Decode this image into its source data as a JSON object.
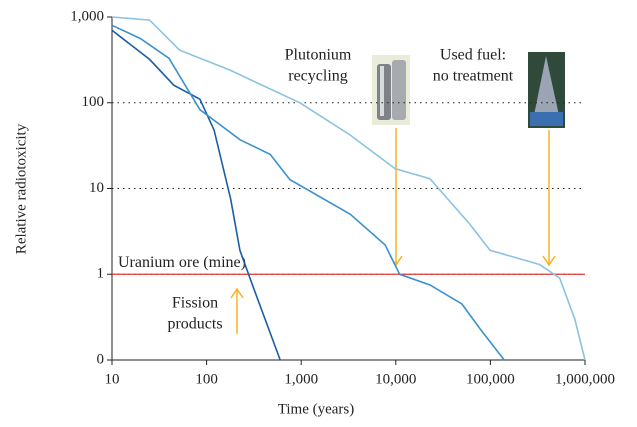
{
  "chart_data": {
    "type": "line",
    "xlabel": "Time (years)",
    "ylabel": "Relative radiotoxicity",
    "xscale": "log",
    "yscale": "log",
    "xlim": [
      10,
      1000000
    ],
    "ylim": [
      0.1,
      1000
    ],
    "xticks": [
      10,
      100,
      {
        "value": 1000,
        "label": "1,000"
      },
      {
        "value": 10000,
        "label": "10,000"
      },
      {
        "value": 100000,
        "label": "100,000"
      },
      {
        "value": 1000000,
        "label": "1,000,000"
      }
    ],
    "yticks": [
      {
        "value": 0.1,
        "label": "0"
      },
      1,
      10,
      100,
      {
        "value": 1000,
        "label": "1,000"
      }
    ],
    "grid": true,
    "reference_line": {
      "value": 1,
      "label": "Uranium ore (mine)",
      "color": "#e53935"
    },
    "annotations": {
      "plutonium": [
        "Plutonium",
        "recycling"
      ],
      "used_fuel": [
        "Used fuel:",
        "no treatment"
      ],
      "fission": [
        "Fission",
        "products"
      ]
    },
    "series": [
      {
        "color": "#1b5ea6",
        "x": [
          10,
          25,
          45,
          85,
          120,
          180,
          225,
          320,
          600
        ],
        "values": [
          700,
          320,
          160,
          110,
          48,
          7.5,
          1.9,
          0.65,
          0.1
        ]
      },
      {
        "color": "#3c91cf",
        "x": [
          10,
          20,
          40,
          85,
          226,
          470,
          760,
          3300,
          7700,
          11000,
          23000,
          50000,
          78000,
          140000
        ],
        "values": [
          800,
          560,
          330,
          83,
          37,
          25,
          12.7,
          5,
          2.2,
          1.0,
          0.75,
          0.45,
          0.23,
          0.1
        ]
      },
      {
        "color": "#8cc3e0",
        "x": [
          10,
          25,
          52,
          177,
          365,
          970,
          3300,
          9800,
          23000,
          61000,
          99000,
          330000,
          540000,
          780000,
          1000000
        ],
        "values": [
          1000,
          920,
          410,
          240,
          165,
          100,
          42,
          17,
          13,
          3.8,
          1.9,
          1.3,
          0.9,
          0.3,
          0.1
        ]
      }
    ]
  }
}
